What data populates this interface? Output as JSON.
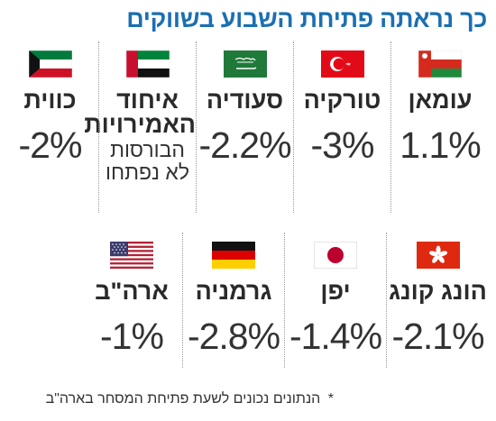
{
  "title": "כך נראתה פתיחת השבוע בשווקים",
  "row1": [
    {
      "country": "עומאן",
      "value": "1.1%",
      "flag": "oman-flag-icon"
    },
    {
      "country": "טורקיה",
      "value": "-3%",
      "flag": "turkey-flag-icon"
    },
    {
      "country": "סעודיה",
      "value": "-2.2%",
      "flag": "saudi-flag-icon"
    },
    {
      "country": "איחוד האמירויות",
      "note": "הבורסות לא נפתחו",
      "flag": "uae-flag-icon"
    },
    {
      "country": "כווית",
      "value": "-2%",
      "flag": "kuwait-flag-icon"
    }
  ],
  "row2": [
    {
      "country": "הונג קונג",
      "value": "-2.1%",
      "flag": "hongkong-flag-icon"
    },
    {
      "country": "יפן",
      "value": "-1.4%",
      "flag": "japan-flag-icon"
    },
    {
      "country": "גרמניה",
      "value": "-2.8%",
      "flag": "germany-flag-icon"
    },
    {
      "country": "ארה\"ב",
      "value": "-1%",
      "flag": "usa-flag-icon"
    }
  ],
  "footnote": {
    "star": "*",
    "text": "הנתונים נכונים לשעת פתיחת המסחר בארה\"ב"
  },
  "colors": {
    "title": "#1a6fb3"
  }
}
